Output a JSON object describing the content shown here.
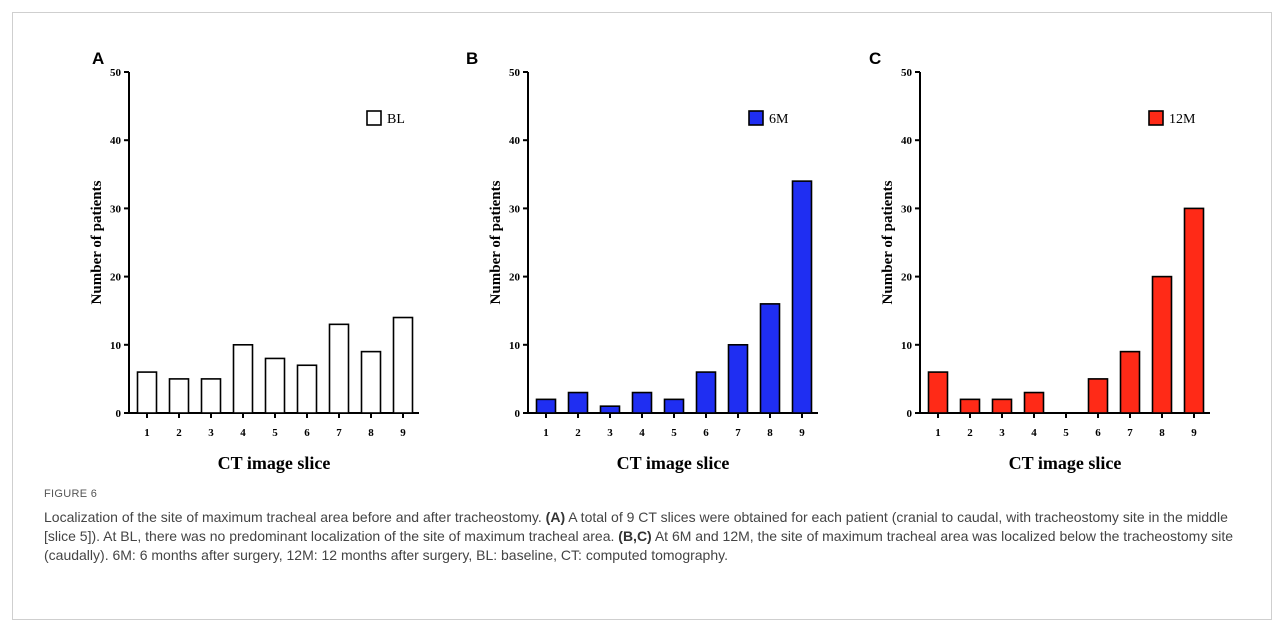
{
  "chart_data": [
    {
      "type": "bar",
      "panel": "A",
      "categories": [
        "1",
        "2",
        "3",
        "4",
        "5",
        "6",
        "7",
        "8",
        "9"
      ],
      "series": [
        {
          "name": "BL",
          "values": [
            6,
            5,
            5,
            10,
            8,
            7,
            13,
            9,
            14
          ],
          "color": "#ffffff"
        }
      ],
      "xlabel": "CT image slice",
      "ylabel": "Number of patients",
      "ylim": [
        0,
        50
      ],
      "yticks": [
        0,
        10,
        20,
        30,
        40,
        50
      ],
      "legend": "top-right",
      "grid": false
    },
    {
      "type": "bar",
      "panel": "B",
      "categories": [
        "1",
        "2",
        "3",
        "4",
        "5",
        "6",
        "7",
        "8",
        "9"
      ],
      "series": [
        {
          "name": "6M",
          "values": [
            2,
            3,
            1,
            3,
            2,
            6,
            10,
            16,
            34
          ],
          "color": "#1f2ef2"
        }
      ],
      "xlabel": "CT image slice",
      "ylabel": "Number of patients",
      "ylim": [
        0,
        50
      ],
      "yticks": [
        0,
        10,
        20,
        30,
        40,
        50
      ],
      "legend": "top-right",
      "grid": false
    },
    {
      "type": "bar",
      "panel": "C",
      "categories": [
        "1",
        "2",
        "3",
        "4",
        "5",
        "6",
        "7",
        "8",
        "9"
      ],
      "series": [
        {
          "name": "12M",
          "values": [
            6,
            2,
            2,
            3,
            0,
            5,
            9,
            20,
            30
          ],
          "color": "#ff2a17"
        }
      ],
      "xlabel": "CT image slice",
      "ylabel": "Number of patients",
      "ylim": [
        0,
        50
      ],
      "yticks": [
        0,
        10,
        20,
        30,
        40,
        50
      ],
      "legend": "top-right",
      "grid": false
    }
  ],
  "caption": {
    "label": "FIGURE 6",
    "text_1": "Localization of the site of maximum tracheal area before and after tracheostomy. ",
    "ref_a": "(A)",
    "text_2": " A total of 9 CT slices were obtained for each patient (cranial to caudal, with tracheostomy site in the middle [slice 5]). At BL, there was no predominant localization of the site of maximum tracheal area. ",
    "ref_bc": "(B,C)",
    "text_3": " At 6M and 12M, the site of maximum tracheal area was localized below the tracheostomy site (caudally). 6M: 6 months after surgery, 12M: 12 months after surgery, BL: baseline, CT: computed tomography."
  }
}
